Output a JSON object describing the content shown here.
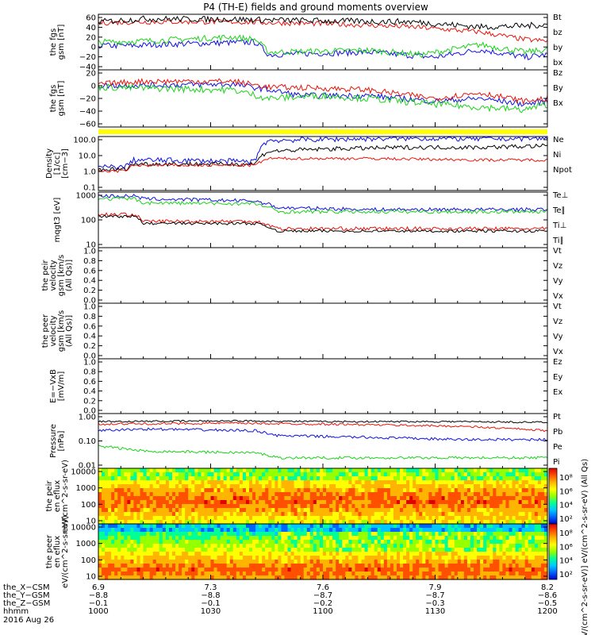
{
  "title": "P4 (TH-E) fields and ground moments overview",
  "colors": {
    "black": "#000000",
    "red": "#e8140c",
    "green": "#1ad31a",
    "blue": "#1010e0",
    "yellow": "#ffff00"
  },
  "chart_data": [
    {
      "type": "line",
      "id": "p1",
      "ylabel": "the fgs gsm [nT]",
      "yticks": [
        "60",
        "40",
        "20",
        "0",
        "−20",
        "−40"
      ],
      "ylim": [
        -45,
        65
      ],
      "grid": false,
      "legend": [
        {
          "name": "Bt",
          "color": "black"
        },
        {
          "name": "bz",
          "color": "red"
        },
        {
          "name": "by",
          "color": "green"
        },
        {
          "name": "bx",
          "color": "blue"
        }
      ]
    },
    {
      "type": "line",
      "id": "p2",
      "ylabel": "the fgs gsm [nT]",
      "yticks": [
        "20",
        "0",
        "−20",
        "−40",
        "−60"
      ],
      "ylim": [
        -70,
        30
      ],
      "grid": false,
      "legend": [
        {
          "name": "Bz",
          "color": "red"
        },
        {
          "name": "By",
          "color": "green"
        },
        {
          "name": "Bx",
          "color": "blue"
        }
      ]
    },
    {
      "type": "line",
      "id": "p3",
      "ylabel": "Density [1/cc] [cm−3]",
      "yticks": [
        "100.0",
        "10.0",
        "1.0",
        "0.1"
      ],
      "ylim": [
        0.1,
        100
      ],
      "log": true,
      "legend": [
        {
          "name": "Ne",
          "color": "red"
        },
        {
          "name": "Ni",
          "color": "black"
        },
        {
          "name": "Npot",
          "color": "blue"
        }
      ]
    },
    {
      "type": "line",
      "id": "p4",
      "ylabel": "mqgt3 [eV]",
      "yticks": [
        "1000",
        "100",
        "10"
      ],
      "ylim": [
        10,
        3000
      ],
      "log": true,
      "legend": [
        {
          "name": "Te⊥",
          "color": "red"
        },
        {
          "name": "Te∥",
          "color": "black"
        },
        {
          "name": "Ti⊥",
          "color": "green"
        },
        {
          "name": "Ti∥",
          "color": "green"
        }
      ]
    },
    {
      "type": "line",
      "id": "p5",
      "ylabel": "the peir velocity gsm [km/s (All Qs)]",
      "yticks": [
        "1.0",
        "0.8",
        "0.6",
        "0.4",
        "0.2",
        "0.0"
      ],
      "ylim": [
        0,
        1
      ],
      "legend": [
        {
          "name": "Vt",
          "color": "black"
        },
        {
          "name": "Vz",
          "color": "red"
        },
        {
          "name": "Vy",
          "color": "green"
        },
        {
          "name": "Vx",
          "color": "blue"
        }
      ]
    },
    {
      "type": "line",
      "id": "p6",
      "ylabel": "the peer velocity gsm [km/s (All Qs)]",
      "yticks": [
        "1.0",
        "0.8",
        "0.6",
        "0.4",
        "0.2",
        "0.0"
      ],
      "ylim": [
        0,
        1
      ],
      "legend": [
        {
          "name": "Vt",
          "color": "black"
        },
        {
          "name": "Vz",
          "color": "red"
        },
        {
          "name": "Vy",
          "color": "green"
        },
        {
          "name": "Vx",
          "color": "blue"
        }
      ]
    },
    {
      "type": "line",
      "id": "p7",
      "ylabel": "E=−VxB [mV/m]",
      "yticks": [
        "1.0",
        "0.8",
        "0.6",
        "0.4",
        "0.2",
        "0.0"
      ],
      "ylim": [
        0,
        1
      ],
      "legend": [
        {
          "name": "Ez",
          "color": "red"
        },
        {
          "name": "Ey",
          "color": "green"
        },
        {
          "name": "Ex",
          "color": "blue"
        }
      ]
    },
    {
      "type": "line",
      "id": "p8",
      "ylabel": "Pressure [nPa]",
      "yticks": [
        "1.00",
        "0.10",
        "0.01"
      ],
      "ylim": [
        0.01,
        3
      ],
      "log": true,
      "legend": [
        {
          "name": "Pt",
          "color": "black"
        },
        {
          "name": "Pb",
          "color": "red"
        },
        {
          "name": "Pe",
          "color": "green"
        },
        {
          "name": "Pi",
          "color": "blue"
        }
      ]
    },
    {
      "type": "heatmap",
      "id": "p9",
      "ylabel": "the peir en eflux eV/(cm^2-s-sr-eV)",
      "yticks": [
        "10000",
        "1000",
        "100",
        "10"
      ],
      "ylim": [
        5,
        30000
      ],
      "log": true
    },
    {
      "type": "heatmap",
      "id": "p10",
      "ylabel": "the peer en eflux eV/(cm^2-s-sr-eV)",
      "yticks": [
        "10000",
        "1000",
        "100",
        "10"
      ],
      "ylim": [
        5,
        30000
      ],
      "log": true
    }
  ],
  "colorbars": [
    {
      "ticks": [
        "10⁸",
        "10⁶",
        "10⁴",
        "10²"
      ]
    },
    {
      "ticks": [
        "10⁸",
        "10⁶",
        "10⁴",
        "10²"
      ]
    }
  ],
  "colorbar_label": "[eV/(cm^2-s-sr-eV)] eV/(cm^2-s-sr-eV) (All Qs)",
  "xaxis": {
    "rows": [
      {
        "label": "the_X−CSM",
        "values": [
          "6.9",
          "7.3",
          "7.6",
          "7.9",
          "8.2"
        ]
      },
      {
        "label": "the_Y−GSM",
        "values": [
          "−8.8",
          "−8.8",
          "−8.7",
          "−8.7",
          "−8.6"
        ]
      },
      {
        "label": "the_Z−GSM",
        "values": [
          "−0.1",
          "−0.1",
          "−0.2",
          "−0.3",
          "−0.5"
        ]
      },
      {
        "label": "hhmm",
        "values": [
          "1000",
          "1030",
          "1100",
          "1130",
          "1200"
        ]
      }
    ],
    "date": "2016 Aug 26"
  }
}
